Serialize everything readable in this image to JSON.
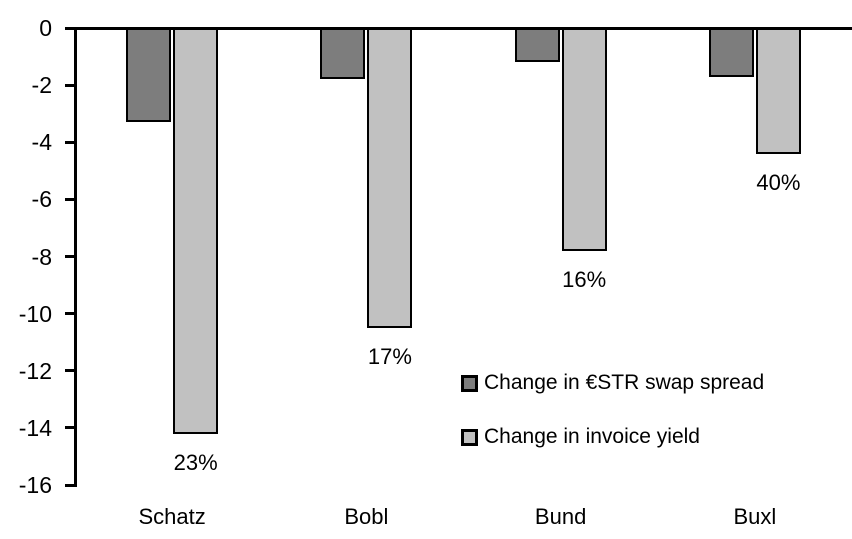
{
  "chart_data": {
    "type": "bar",
    "title": "",
    "xlabel": "",
    "ylabel": "",
    "categories": [
      "Schatz",
      "Bobl",
      "Bund",
      "Buxl"
    ],
    "series": [
      {
        "name": "Change in €STR swap spread",
        "color": "#7d7d7d",
        "values": [
          -3.3,
          -1.8,
          -1.2,
          -1.7
        ]
      },
      {
        "name": "Change in invoice yield",
        "color": "#c1c1c1",
        "values": [
          -14.2,
          -10.5,
          -7.8,
          -4.4
        ]
      }
    ],
    "bar_labels": [
      "23%",
      "17%",
      "16%",
      "40%"
    ],
    "bar_labels_on_series": "Change in invoice yield",
    "ylim": [
      -16,
      0
    ],
    "yticks": [
      0,
      -2,
      -4,
      -6,
      -8,
      -10,
      -12,
      -14,
      -16
    ],
    "grid": false,
    "legend_position": "inside-right",
    "axis_color": "#000000",
    "background_color": "#ffffff"
  }
}
